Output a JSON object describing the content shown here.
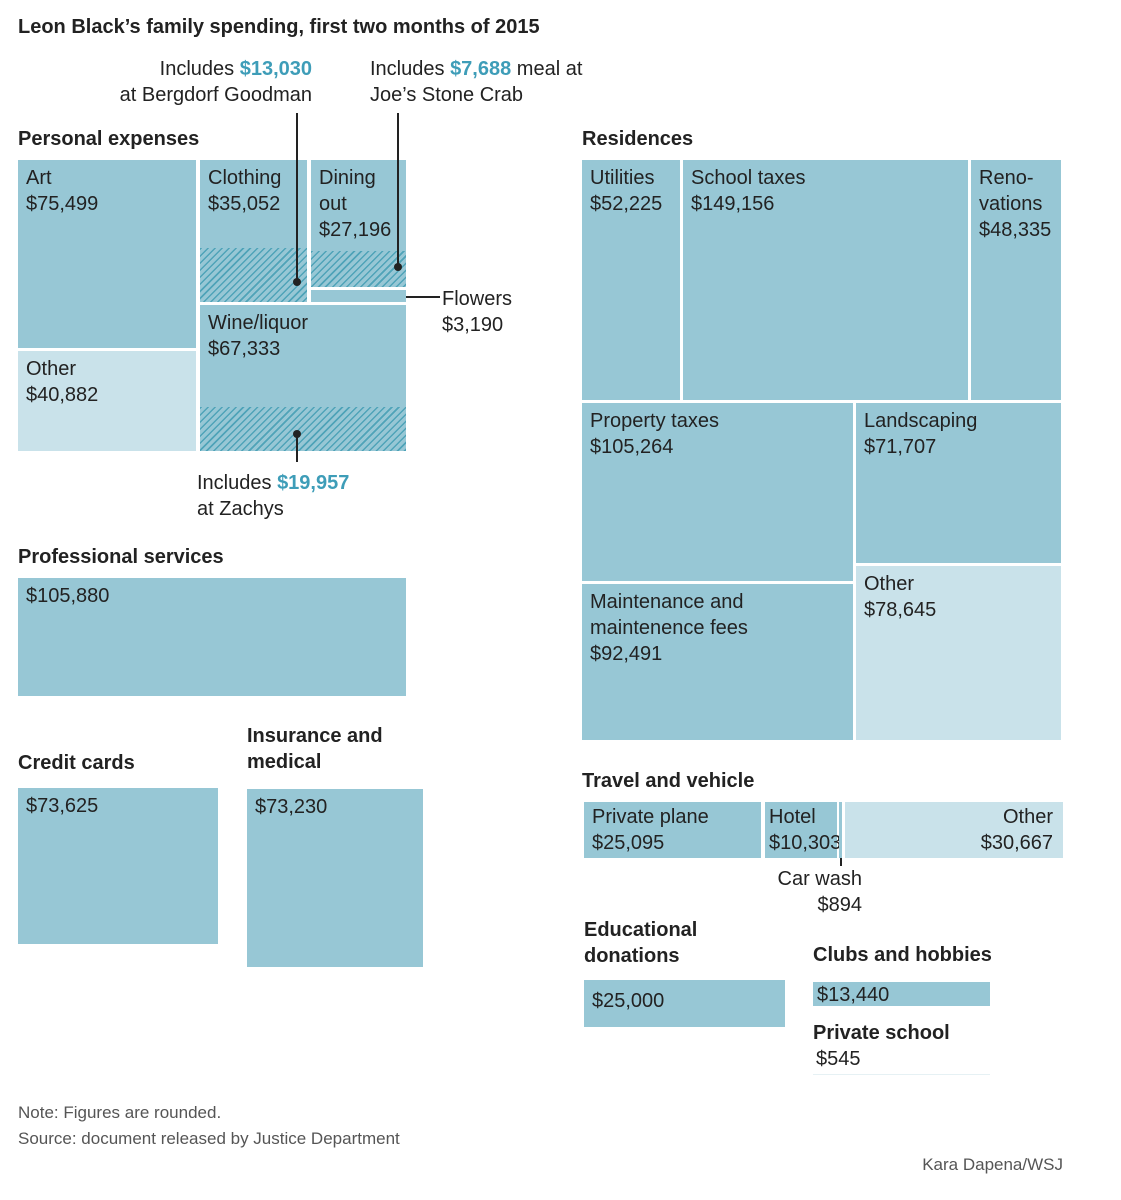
{
  "title": "Leon Black’s family spending, first two months of 2015",
  "chart_data": {
    "type": "treemap",
    "title": "Leon Black’s family spending, first two months of 2015",
    "groups": [
      {
        "name": "Personal expenses",
        "items": [
          {
            "label": "Art",
            "value": 75499,
            "display": "$75,499"
          },
          {
            "label": "Other",
            "value": 40882,
            "display": "$40,882"
          },
          {
            "label": "Clothing",
            "value": 35052,
            "display": "$35,052",
            "includes": {
              "value": 13030,
              "display": "$13,030",
              "prefix": "Includes",
              "suffix": "at Bergdorf Goodman"
            }
          },
          {
            "label": "Dining out",
            "label_lines": [
              "Dining",
              "out"
            ],
            "value": 27196,
            "display": "$27,196",
            "includes": {
              "value": 7688,
              "display": "$7,688",
              "prefix": "Includes",
              "suffix1": "meal at",
              "suffix2": "Joe’s Stone Crab"
            }
          },
          {
            "label": "Flowers",
            "value": 3190,
            "display": "$3,190"
          },
          {
            "label": "Wine/liquor",
            "value": 67333,
            "display": "$67,333",
            "includes": {
              "value": 19957,
              "display": "$19,957",
              "prefix": "Includes",
              "suffix": "at Zachys"
            }
          }
        ]
      },
      {
        "name": "Professional services",
        "items": [
          {
            "label": "",
            "value": 105880,
            "display": "$105,880"
          }
        ]
      },
      {
        "name": "Credit cards",
        "items": [
          {
            "label": "",
            "value": 73625,
            "display": "$73,625"
          }
        ]
      },
      {
        "name": "Insurance and medical",
        "name_lines": [
          "Insurance and",
          "medical"
        ],
        "items": [
          {
            "label": "",
            "value": 73230,
            "display": "$73,230"
          }
        ]
      },
      {
        "name": "Residences",
        "items": [
          {
            "label": "Utilities",
            "value": 52225,
            "display": "$52,225"
          },
          {
            "label": "School taxes",
            "value": 149156,
            "display": "$149,156"
          },
          {
            "label": "Renovations",
            "label_lines": [
              "Reno-",
              "vations"
            ],
            "value": 48335,
            "display": "$48,335"
          },
          {
            "label": "Property taxes",
            "value": 105264,
            "display": "$105,264"
          },
          {
            "label": "Maintenance and maintenence fees",
            "label_lines": [
              "Maintenance and",
              "maintenence fees"
            ],
            "value": 92491,
            "display": "$92,491"
          },
          {
            "label": "Landscaping",
            "value": 71707,
            "display": "$71,707"
          },
          {
            "label": "Other",
            "value": 78645,
            "display": "$78,645"
          }
        ]
      },
      {
        "name": "Travel and vehicle",
        "items": [
          {
            "label": "Private plane",
            "value": 25095,
            "display": "$25,095"
          },
          {
            "label": "Hotel",
            "value": 10303,
            "display": "$10,303"
          },
          {
            "label": "Car wash",
            "value": 894,
            "display": "$894"
          },
          {
            "label": "Other",
            "value": 30667,
            "display": "$30,667"
          }
        ]
      },
      {
        "name": "Educational donations",
        "name_lines": [
          "Educational",
          "donations"
        ],
        "items": [
          {
            "label": "",
            "value": 25000,
            "display": "$25,000"
          }
        ]
      },
      {
        "name": "Clubs and hobbies",
        "items": [
          {
            "label": "",
            "value": 13440,
            "display": "$13,440"
          }
        ]
      },
      {
        "name": "Private school",
        "items": [
          {
            "label": "",
            "value": 545,
            "display": "$545"
          }
        ]
      }
    ]
  },
  "footer": {
    "note": "Note: Figures are rounded.",
    "source": "Source: document released by Justice Department",
    "credit": "Kara Dapena/WSJ"
  },
  "colors": {
    "fill": "#97c7d5",
    "other": "#c9e2ea",
    "accent": "#3e9db8"
  }
}
